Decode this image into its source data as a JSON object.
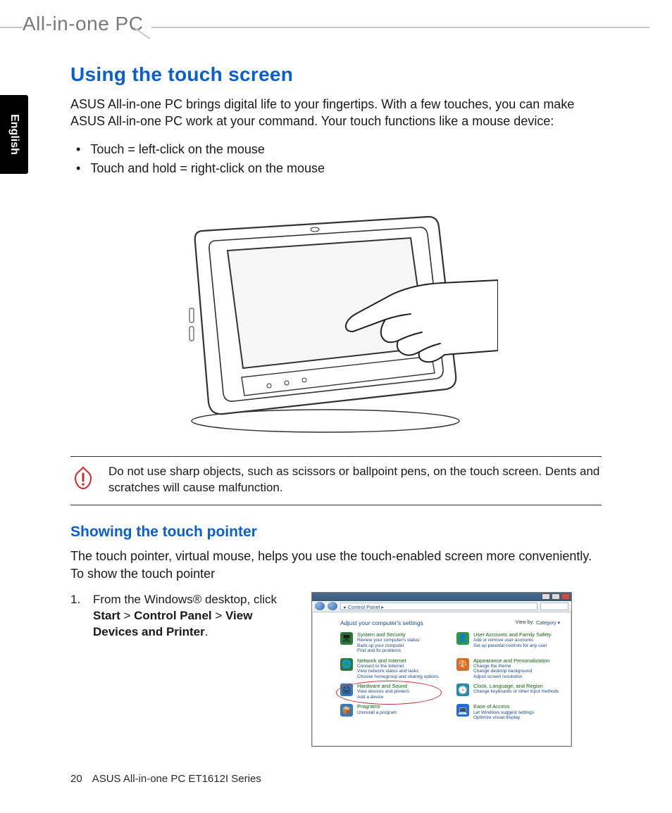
{
  "colors": {
    "heading_blue": "#0a5fd0",
    "text": "#1a1a1a",
    "header_gray": "#7a7a7a",
    "rule_gray": "#c8c8c8",
    "warning_red": "#d02a2a",
    "cp_green": "#11660c",
    "cp_link": "#1a4a8f"
  },
  "header": {
    "product_line": "All-in-one PC"
  },
  "language_tab": "English",
  "section": {
    "title": "Using the touch screen",
    "intro": "ASUS All-in-one PC brings digital life to your fingertips. With a few touches, you can make ASUS All-in-one PC work at your command. Your touch functions like a mouse device:",
    "bullets": [
      "Touch = left-click on the mouse",
      "Touch and hold = right-click on the mouse"
    ]
  },
  "warning": {
    "text": "Do not use sharp objects, such as scissors or ballpoint pens, on the touch screen. Dents and scratches will cause malfunction."
  },
  "subsection": {
    "title": "Showing the touch pointer",
    "intro": "The touch pointer, virtual mouse, helps you use the touch-enabled screen more conveniently. To show the touch pointer",
    "step_number": "1.",
    "step_text_before": "From the Windows® desktop, click ",
    "step_bold_1": "Start",
    "step_sep_1": " > ",
    "step_bold_2": "Control Panel",
    "step_sep_2": " > ",
    "step_bold_3": "View Devices and Printer",
    "step_after": "."
  },
  "control_panel": {
    "breadcrumb": "▸ Control Panel ▸",
    "adjust_label": "Adjust your computer's settings",
    "viewby_label": "View by:",
    "viewby_value": "Category ▾",
    "categories_left": [
      {
        "title": "System and Security",
        "subs": [
          "Review your computer's status",
          "Back up your computer",
          "Find and fix problems"
        ],
        "icon_bg": "#2a7a3a",
        "icon_glyph": "🖥"
      },
      {
        "title": "Network and Internet",
        "subs": [
          "Connect to the Internet",
          "View network status and tasks",
          "Choose homegroup and sharing options"
        ],
        "icon_bg": "#2a7a3a",
        "icon_glyph": "🌐"
      },
      {
        "title": "Hardware and Sound",
        "subs": [
          "View devices and printers",
          "Add a device"
        ],
        "icon_bg": "#3a7ab8",
        "icon_glyph": "🖨",
        "circled": true
      },
      {
        "title": "Programs",
        "subs": [
          "Uninstall a program"
        ],
        "icon_bg": "#3a7ab8",
        "icon_glyph": "📦"
      }
    ],
    "categories_right": [
      {
        "title": "User Accounts and Family Safety",
        "subs": [
          "Add or remove user accounts",
          "Set up parental controls for any user"
        ],
        "icon_bg": "#2a9a4a",
        "icon_glyph": "👤"
      },
      {
        "title": "Appearance and Personalization",
        "subs": [
          "Change the theme",
          "Change desktop background",
          "Adjust screen resolution"
        ],
        "icon_bg": "#d86a2a",
        "icon_glyph": "🎨"
      },
      {
        "title": "Clock, Language, and Region",
        "subs": [
          "Change keyboards or other input methods"
        ],
        "icon_bg": "#2a8aa8",
        "icon_glyph": "🕒"
      },
      {
        "title": "Ease of Access",
        "subs": [
          "Let Windows suggest settings",
          "Optimize visual display"
        ],
        "icon_bg": "#2a6ad8",
        "icon_glyph": "💻"
      }
    ]
  },
  "footer": {
    "page_number": "20",
    "doc_title": "ASUS All-in-one PC ET1612I Series"
  }
}
